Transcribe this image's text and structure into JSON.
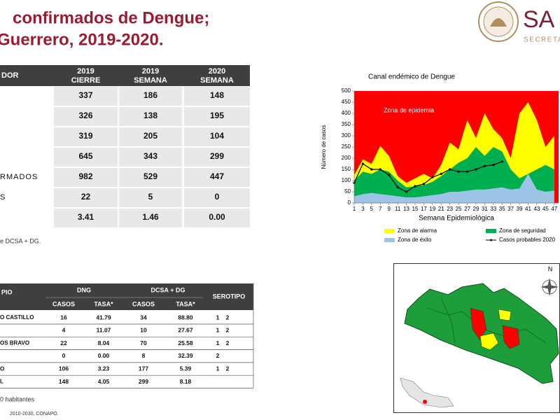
{
  "header": {
    "title_lines": [
      "confirmados de Dengue;",
      "Guerrero, 2019-2020."
    ],
    "logo_text": "SA",
    "logo_subtext": "SECRETA"
  },
  "summary_table": {
    "first_column": "DOR",
    "columns": [
      {
        "year": "2019",
        "label": "CIERRE"
      },
      {
        "year": "2019",
        "label": "SEMANA"
      },
      {
        "year": "2020",
        "label": "SEMANA"
      }
    ],
    "rows": [
      {
        "cells": [
          "337",
          "186",
          "148"
        ]
      },
      {
        "cells": [
          "326",
          "138",
          "195"
        ]
      },
      {
        "cells": [
          "319",
          "205",
          "104"
        ]
      },
      {
        "cells": [
          "645",
          "343",
          "299"
        ]
      },
      {
        "label": "RMADOS",
        "cells": [
          "982",
          "529",
          "447"
        ]
      },
      {
        "label": "S",
        "cells": [
          "22",
          "5",
          "0"
        ]
      },
      {
        "cells": [
          "3.41",
          "1.46",
          "0.00"
        ]
      }
    ],
    "note": "e DCSA + DG."
  },
  "chart_data": {
    "type": "area",
    "title": "Canal endémico de Dengue",
    "y_label": "Número de casos",
    "x_label": "Semana Epidemiológica",
    "annotation": "Zona de epidemia",
    "background_color": "#ff0000",
    "x": [
      1,
      3,
      5,
      7,
      9,
      11,
      13,
      15,
      17,
      19,
      21,
      23,
      25,
      27,
      29,
      31,
      33,
      35,
      37,
      39,
      41,
      43,
      45,
      47
    ],
    "xlim": [
      1,
      48
    ],
    "xticks": [
      1,
      3,
      5,
      7,
      9,
      11,
      13,
      15,
      17,
      19,
      21,
      23,
      25,
      27,
      29,
      31,
      33,
      35,
      37,
      39,
      41,
      43,
      45,
      47
    ],
    "ylim": [
      0,
      500
    ],
    "yticks": [
      0,
      50,
      100,
      150,
      200,
      250,
      300,
      350,
      400,
      450,
      500
    ],
    "series": [
      {
        "name": "Zona de alarma",
        "color": "#ffff00",
        "style": "area",
        "values": [
          125,
          195,
          175,
          255,
          210,
          120,
          90,
          110,
          130,
          110,
          170,
          270,
          240,
          370,
          290,
          400,
          330,
          290,
          200,
          400,
          450,
          370,
          250,
          300
        ]
      },
      {
        "name": "Zona de seguridad",
        "color": "#00b050",
        "style": "area",
        "values": [
          100,
          140,
          130,
          150,
          140,
          100,
          70,
          75,
          80,
          95,
          120,
          150,
          180,
          200,
          250,
          210,
          250,
          230,
          150,
          110,
          130,
          150,
          170,
          150
        ]
      },
      {
        "name": "Zona de éxito",
        "color": "#9dc3e6",
        "style": "area",
        "values": [
          30,
          40,
          45,
          40,
          35,
          30,
          25,
          25,
          30,
          35,
          40,
          50,
          50,
          55,
          60,
          60,
          65,
          70,
          60,
          65,
          130,
          60,
          50,
          55
        ]
      },
      {
        "name": "Casos probables 2020",
        "color": "#000000",
        "style": "line",
        "values": [
          90,
          175,
          150,
          150,
          125,
          70,
          50,
          75,
          85,
          115,
          130,
          150,
          140,
          140,
          150,
          165,
          170,
          185,
          null,
          null,
          null,
          null,
          null,
          null
        ]
      }
    ]
  },
  "municipal_table": {
    "first_column": "PIO",
    "groups": [
      "DNG",
      "DCSA + DG"
    ],
    "subcolumns": [
      "CASOS",
      "TASA*",
      "CASOS",
      "TASA*"
    ],
    "last_column": "SEROTIPO",
    "rows": [
      {
        "label": "O CASTILLO",
        "cells": [
          "16",
          "41.79",
          "34",
          "88.80"
        ],
        "serotypes": [
          "1",
          "2"
        ]
      },
      {
        "cells": [
          "4",
          "11.07",
          "10",
          "27.67"
        ],
        "serotypes": [
          "1",
          "2"
        ]
      },
      {
        "label": "OS BRAVO",
        "cells": [
          "22",
          "8.04",
          "70",
          "25.58"
        ],
        "serotypes": [
          "1",
          "2"
        ]
      },
      {
        "cells": [
          "0",
          "0.00",
          "8",
          "32.39"
        ],
        "serotypes": [
          "2"
        ]
      },
      {
        "label": "O",
        "cells": [
          "106",
          "3.23",
          "177",
          "5.39"
        ],
        "serotypes": [
          "1",
          "2"
        ]
      },
      {
        "label": "L",
        "cells": [
          "148",
          "4.05",
          "299",
          "8.18"
        ]
      }
    ]
  },
  "map": {
    "north_label": "N"
  },
  "footnotes": [
    "0 habitantes",
    "2010-2030, CONAPO."
  ]
}
